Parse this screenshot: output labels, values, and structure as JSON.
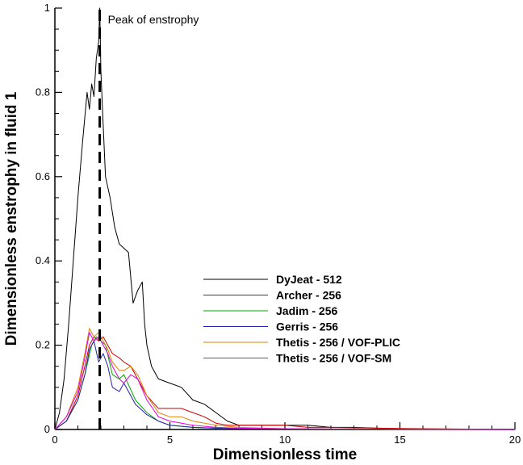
{
  "chart_data": {
    "type": "line",
    "xlabel": "Dimensionless time",
    "ylabel": "Dimensionless enstrophy in fluid 1",
    "xlim": [
      0,
      20
    ],
    "ylim": [
      0,
      1
    ],
    "xticks": [
      0,
      5,
      10,
      15,
      20
    ],
    "yticks": [
      0,
      0.2,
      0.4,
      0.6,
      0.8,
      1
    ],
    "grid": false,
    "legend_position": "center-right",
    "annotation": {
      "text": "Peak of enstrophy",
      "x": 1.95
    },
    "series": [
      {
        "name": "DyJeat - 512",
        "color": "#000000",
        "x": [
          0,
          0.2,
          0.4,
          0.6,
          0.8,
          1.0,
          1.2,
          1.4,
          1.5,
          1.6,
          1.7,
          1.8,
          1.9,
          1.95,
          2.0,
          2.1,
          2.2,
          2.4,
          2.6,
          2.8,
          3.0,
          3.2,
          3.4,
          3.6,
          3.8,
          3.9,
          4.0,
          4.2,
          4.5,
          5.0,
          5.5,
          6.0,
          6.5,
          7.0,
          7.5,
          8.0,
          9.0,
          10.0,
          11.0,
          12.0,
          13.0,
          14.0,
          15.0,
          16.0,
          17.0,
          18.0
        ],
        "y": [
          0,
          0.04,
          0.12,
          0.25,
          0.4,
          0.55,
          0.68,
          0.8,
          0.76,
          0.82,
          0.79,
          0.88,
          0.92,
          1.0,
          0.85,
          0.72,
          0.6,
          0.55,
          0.48,
          0.44,
          0.43,
          0.42,
          0.3,
          0.33,
          0.35,
          0.25,
          0.2,
          0.15,
          0.12,
          0.11,
          0.1,
          0.07,
          0.06,
          0.04,
          0.02,
          0.01,
          0.01,
          0.01,
          0.01,
          0.005,
          0.005,
          0.003,
          0.002,
          0.001,
          0.001,
          0
        ]
      },
      {
        "name": "Archer - 256",
        "color": "#cc0000",
        "x": [
          0,
          0.5,
          1.0,
          1.3,
          1.5,
          1.7,
          1.9,
          2.1,
          2.3,
          2.5,
          2.8,
          3.0,
          3.3,
          3.6,
          4.0,
          4.5,
          5.0,
          5.5,
          6.0,
          6.5,
          7.0,
          7.5,
          8.0,
          9.0,
          10.0,
          11.0,
          12.0,
          14.0,
          16.0,
          18.0,
          20.0
        ],
        "y": [
          0,
          0.02,
          0.08,
          0.15,
          0.2,
          0.22,
          0.21,
          0.22,
          0.2,
          0.18,
          0.17,
          0.16,
          0.15,
          0.12,
          0.08,
          0.05,
          0.05,
          0.05,
          0.04,
          0.03,
          0.015,
          0.01,
          0.01,
          0.01,
          0.01,
          0.005,
          0.005,
          0.003,
          0.002,
          0.001,
          0.001
        ]
      },
      {
        "name": "Jadim - 256",
        "color": "#00aa00",
        "x": [
          0,
          0.5,
          1.0,
          1.3,
          1.6,
          1.8,
          2.0,
          2.2,
          2.5,
          2.8,
          3.0,
          3.5,
          4.0,
          4.5,
          5.0,
          6.0,
          7.0,
          8.0,
          10.0,
          14.0,
          20.0
        ],
        "y": [
          0,
          0.02,
          0.07,
          0.13,
          0.2,
          0.22,
          0.21,
          0.2,
          0.13,
          0.12,
          0.13,
          0.07,
          0.04,
          0.02,
          0.01,
          0.005,
          0.003,
          0.002,
          0.001,
          0.001,
          0
        ]
      },
      {
        "name": "Gerris - 256",
        "color": "#2222aa",
        "x": [
          0,
          0.5,
          1.0,
          1.3,
          1.5,
          1.7,
          1.9,
          2.1,
          2.3,
          2.5,
          2.8,
          3.0,
          3.2,
          3.5,
          4.0,
          4.5,
          5.0,
          6.0,
          7.0,
          8.0,
          10.0,
          14.0,
          20.0
        ],
        "y": [
          0,
          0.02,
          0.07,
          0.13,
          0.19,
          0.21,
          0.16,
          0.18,
          0.15,
          0.1,
          0.09,
          0.11,
          0.09,
          0.06,
          0.035,
          0.02,
          0.01,
          0.005,
          0.003,
          0.002,
          0.001,
          0.001,
          0
        ]
      },
      {
        "name": "Thetis - 256 / VOF-PLIC",
        "color": "#e08000",
        "x": [
          0,
          0.5,
          1.0,
          1.3,
          1.5,
          1.7,
          1.9,
          2.1,
          2.3,
          2.5,
          2.8,
          3.0,
          3.3,
          3.6,
          4.0,
          4.5,
          5.0,
          5.5,
          6.0,
          7.0,
          8.0,
          10.0,
          14.0,
          20.0
        ],
        "y": [
          0,
          0.03,
          0.1,
          0.18,
          0.24,
          0.22,
          0.23,
          0.21,
          0.19,
          0.16,
          0.14,
          0.14,
          0.15,
          0.13,
          0.08,
          0.04,
          0.03,
          0.03,
          0.02,
          0.01,
          0.005,
          0.002,
          0.001,
          0
        ]
      },
      {
        "name": "Thetis - 256 / VOF-SM",
        "color": "#e000e0",
        "x": [
          0,
          0.5,
          1.0,
          1.3,
          1.5,
          1.7,
          1.9,
          2.1,
          2.3,
          2.5,
          2.8,
          3.0,
          3.3,
          3.6,
          4.0,
          4.5,
          5.0,
          5.5,
          6.0,
          7.0,
          8.0,
          10.0,
          14.0,
          20.0
        ],
        "y": [
          0,
          0.03,
          0.09,
          0.17,
          0.23,
          0.21,
          0.22,
          0.2,
          0.18,
          0.15,
          0.12,
          0.11,
          0.13,
          0.12,
          0.07,
          0.03,
          0.02,
          0.015,
          0.01,
          0.005,
          0.003,
          0.002,
          0.001,
          0
        ]
      }
    ]
  }
}
